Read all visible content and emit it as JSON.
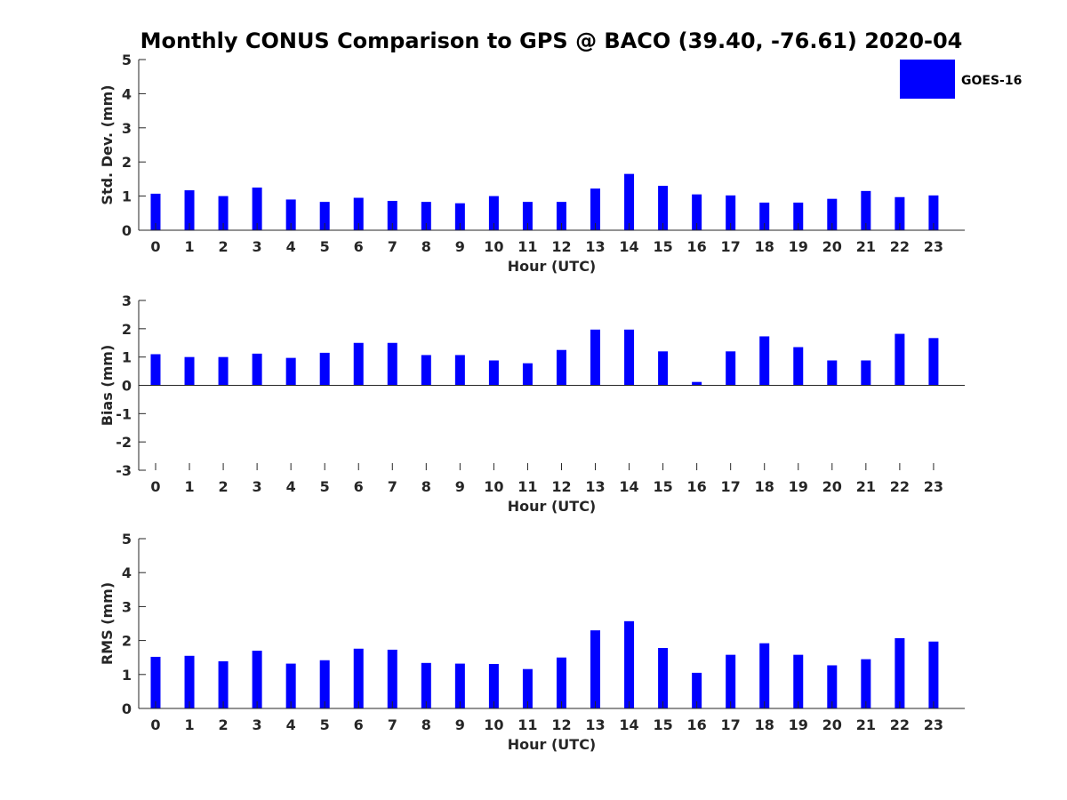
{
  "chart_data": {
    "type": "bar",
    "title": "Monthly CONUS Comparison to GPS @ BACO (39.40, -76.61) 2020-04",
    "legend": {
      "entries": [
        "GOES-16"
      ],
      "placement": "top-right",
      "color": "#0000ff"
    },
    "panels": [
      {
        "id": "std",
        "type": "bar",
        "ylabel": "Std. Dev. (mm)",
        "xlabel": "Hour (UTC)",
        "ylim": [
          0,
          5
        ],
        "yticks": [
          "0",
          "1",
          "2",
          "3",
          "4",
          "5"
        ],
        "categories": [
          "0",
          "1",
          "2",
          "3",
          "4",
          "5",
          "6",
          "7",
          "8",
          "9",
          "10",
          "11",
          "12",
          "13",
          "14",
          "15",
          "16",
          "17",
          "18",
          "19",
          "20",
          "21",
          "22",
          "23"
        ],
        "series": [
          {
            "name": "GOES-16",
            "color": "#0000ff",
            "values": [
              1.07,
              1.17,
              1.0,
              1.25,
              0.9,
              0.83,
              0.95,
              0.86,
              0.83,
              0.79,
              1.0,
              0.83,
              0.83,
              1.22,
              1.65,
              1.3,
              1.05,
              1.02,
              0.81,
              0.81,
              0.92,
              1.15,
              0.97,
              1.02
            ]
          }
        ]
      },
      {
        "id": "bias",
        "type": "bar",
        "ylabel": "Bias (mm)",
        "xlabel": "Hour (UTC)",
        "ylim": [
          -3,
          3
        ],
        "yticks": [
          "-3",
          "-2",
          "-1",
          "0",
          "1",
          "2",
          "3"
        ],
        "categories": [
          "0",
          "1",
          "2",
          "3",
          "4",
          "5",
          "6",
          "7",
          "8",
          "9",
          "10",
          "11",
          "12",
          "13",
          "14",
          "15",
          "16",
          "17",
          "18",
          "19",
          "20",
          "21",
          "22",
          "23"
        ],
        "series": [
          {
            "name": "GOES-16",
            "color": "#0000ff",
            "values": [
              1.1,
              1.0,
              1.0,
              1.12,
              0.97,
              1.15,
              1.5,
              1.5,
              1.07,
              1.07,
              0.88,
              0.78,
              1.25,
              1.97,
              1.97,
              1.2,
              0.12,
              1.2,
              1.73,
              1.35,
              0.88,
              0.88,
              1.82,
              1.67
            ]
          }
        ]
      },
      {
        "id": "rms",
        "type": "bar",
        "ylabel": "RMS (mm)",
        "xlabel": "Hour (UTC)",
        "ylim": [
          0,
          5
        ],
        "yticks": [
          "0",
          "1",
          "2",
          "3",
          "4",
          "5"
        ],
        "categories": [
          "0",
          "1",
          "2",
          "3",
          "4",
          "5",
          "6",
          "7",
          "8",
          "9",
          "10",
          "11",
          "12",
          "13",
          "14",
          "15",
          "16",
          "17",
          "18",
          "19",
          "20",
          "21",
          "22",
          "23"
        ],
        "series": [
          {
            "name": "GOES-16",
            "color": "#0000ff",
            "values": [
              1.52,
              1.55,
              1.39,
              1.7,
              1.32,
              1.42,
              1.76,
              1.73,
              1.34,
              1.32,
              1.31,
              1.16,
              1.5,
              2.3,
              2.57,
              1.78,
              1.05,
              1.58,
              1.92,
              1.58,
              1.27,
              1.45,
              2.07,
              1.97
            ]
          }
        ]
      }
    ]
  }
}
